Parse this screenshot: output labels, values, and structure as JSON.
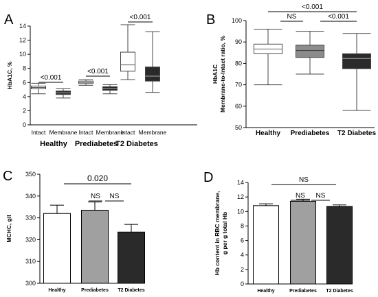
{
  "figure": {
    "panel_labels": [
      "A",
      "B",
      "C",
      "D"
    ]
  },
  "chart_data": [
    {
      "panel": "A",
      "type": "box",
      "ylabel": "HbA1C, %",
      "ylim": [
        0,
        14
      ],
      "yticks": [
        0,
        2,
        4,
        6,
        8,
        10,
        12,
        14
      ],
      "groups": [
        "Healthy",
        "Prediabetes",
        "T2 Diabetes"
      ],
      "subcategories": [
        "Intact",
        "Membrane",
        "Intact",
        "Membrane",
        "Intact",
        "Membrane"
      ],
      "boxes": [
        {
          "group": "Healthy",
          "type": "Intact",
          "min": 4.4,
          "q1": 5.1,
          "median": 5.3,
          "q3": 5.5,
          "max": 5.9,
          "fill": "#ffffff"
        },
        {
          "group": "Healthy",
          "type": "Membrane",
          "min": 3.8,
          "q1": 4.3,
          "median": 4.55,
          "q3": 4.8,
          "max": 5.1,
          "fill": "#2a2a2a"
        },
        {
          "group": "Prediabetes",
          "type": "Intact",
          "min": 5.6,
          "q1": 5.85,
          "median": 6.0,
          "q3": 6.2,
          "max": 6.4,
          "fill": "#ffffff"
        },
        {
          "group": "Prediabetes",
          "type": "Membrane",
          "min": 4.4,
          "q1": 4.9,
          "median": 5.1,
          "q3": 5.4,
          "max": 5.7,
          "fill": "#2a2a2a"
        },
        {
          "group": "T2 Diabetes",
          "type": "Intact",
          "min": 6.4,
          "q1": 7.6,
          "median": 8.5,
          "q3": 10.3,
          "max": 14.2,
          "fill": "#ffffff"
        },
        {
          "group": "T2 Diabetes",
          "type": "Membrane",
          "min": 4.6,
          "q1": 6.2,
          "median": 6.9,
          "q3": 8.2,
          "max": 13.2,
          "fill": "#2a2a2a"
        }
      ],
      "annotations": [
        "<0.001",
        "<0.001",
        "<0.001"
      ]
    },
    {
      "panel": "B",
      "type": "box",
      "ylabel": "HbA1C Membrane-to-Intact ratio, %",
      "ylabel_lines": [
        "HbA1C",
        "Membrane-to-Intact ratio, %"
      ],
      "ylim": [
        50,
        100
      ],
      "yticks": [
        50,
        60,
        70,
        80,
        90,
        100
      ],
      "categories": [
        "Healthy",
        "Prediabetes",
        "T2 Diabetes"
      ],
      "boxes": [
        {
          "category": "Healthy",
          "min": 70,
          "q1": 84.5,
          "median": 86.7,
          "q3": 89,
          "max": 96,
          "fill": "#ffffff"
        },
        {
          "category": "Prediabetes",
          "min": 75,
          "q1": 82.8,
          "median": 86,
          "q3": 88.5,
          "max": 95,
          "fill": "#8c8c8c"
        },
        {
          "category": "T2 Diabetes",
          "min": 58,
          "q1": 77.5,
          "median": 82.3,
          "q3": 84.5,
          "max": 94,
          "fill": "#2a2a2a"
        }
      ],
      "annotations": [
        "<0.001",
        "NS",
        "<0.001"
      ]
    },
    {
      "panel": "C",
      "type": "bar",
      "ylabel": "MCHC, g/l",
      "ylim": [
        300,
        350
      ],
      "yticks": [
        300,
        310,
        320,
        330,
        340,
        350
      ],
      "categories": [
        "Healthy",
        "Prediabetes",
        "T2 Diabetes"
      ],
      "values": [
        332,
        333.5,
        323.5
      ],
      "errors": [
        3.8,
        3.8,
        3.5
      ],
      "colors": [
        "#ffffff",
        "#a0a0a0",
        "#2a2a2a"
      ],
      "annotations": [
        "0.020",
        "NS",
        "NS"
      ]
    },
    {
      "panel": "D",
      "type": "bar",
      "ylabel": "Hb content in RBC membrane, g per g total Hb",
      "ylabel_lines": [
        "Hb content in RBC membrane,",
        "g per g total Hb"
      ],
      "ylim": [
        0,
        14
      ],
      "yticks": [
        0,
        2,
        4,
        6,
        8,
        10,
        12,
        14
      ],
      "categories": [
        "Healthy",
        "Prediabetes",
        "T2 Diabetes"
      ],
      "values": [
        10.8,
        11.4,
        10.7
      ],
      "errors": [
        0.25,
        0.3,
        0.2
      ],
      "colors": [
        "#ffffff",
        "#a0a0a0",
        "#2a2a2a"
      ],
      "annotations": [
        "NS",
        "NS",
        "NS"
      ]
    }
  ]
}
